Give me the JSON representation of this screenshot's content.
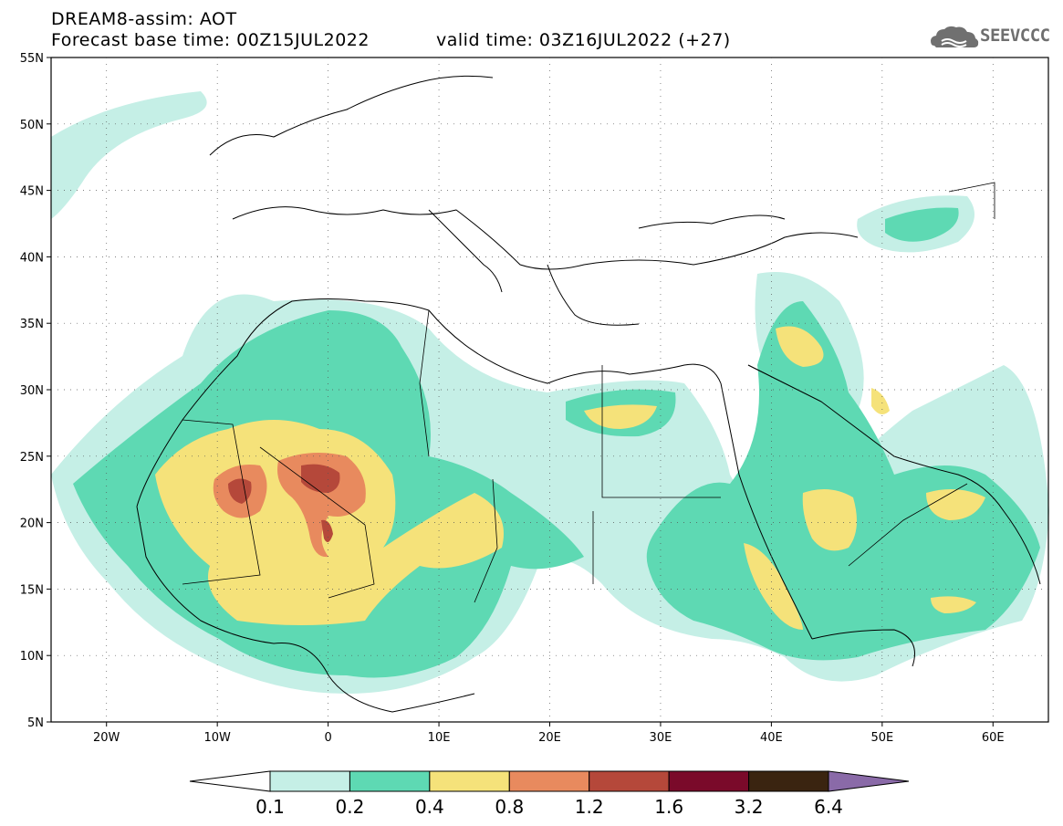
{
  "header": {
    "line1": "DREAM8-assim: AOT",
    "line2": "Forecast base time: 00Z15JUL2022",
    "valid": "valid time: 03Z16JUL2022 (+27)",
    "logo_text": "SEEVCCC"
  },
  "map": {
    "lon_range": [
      -25,
      65
    ],
    "lat_range": [
      5,
      55
    ],
    "lat_ticks": [
      "5N",
      "10N",
      "15N",
      "20N",
      "25N",
      "30N",
      "35N",
      "40N",
      "45N",
      "50N",
      "55N"
    ],
    "lon_ticks": [
      "20W",
      "10W",
      "0",
      "10E",
      "20E",
      "30E",
      "40E",
      "50E",
      "60E"
    ],
    "grid": "dotted"
  },
  "colorbar": {
    "labels": [
      "0.1",
      "0.2",
      "0.4",
      "0.8",
      "1.2",
      "1.6",
      "3.2",
      "6.4"
    ],
    "colors": [
      "#ffffff",
      "#c5efe6",
      "#5ed9b3",
      "#f5e27a",
      "#e88a5e",
      "#b5483a",
      "#7a0a2a",
      "#3a2410",
      "#8a6aa8"
    ]
  },
  "levels": {
    "c1": "#c5efe6",
    "c2": "#5ed9b3",
    "c3": "#f5e27a",
    "c4": "#e88a5e",
    "c5": "#b5483a",
    "c6": "#3a2410"
  }
}
